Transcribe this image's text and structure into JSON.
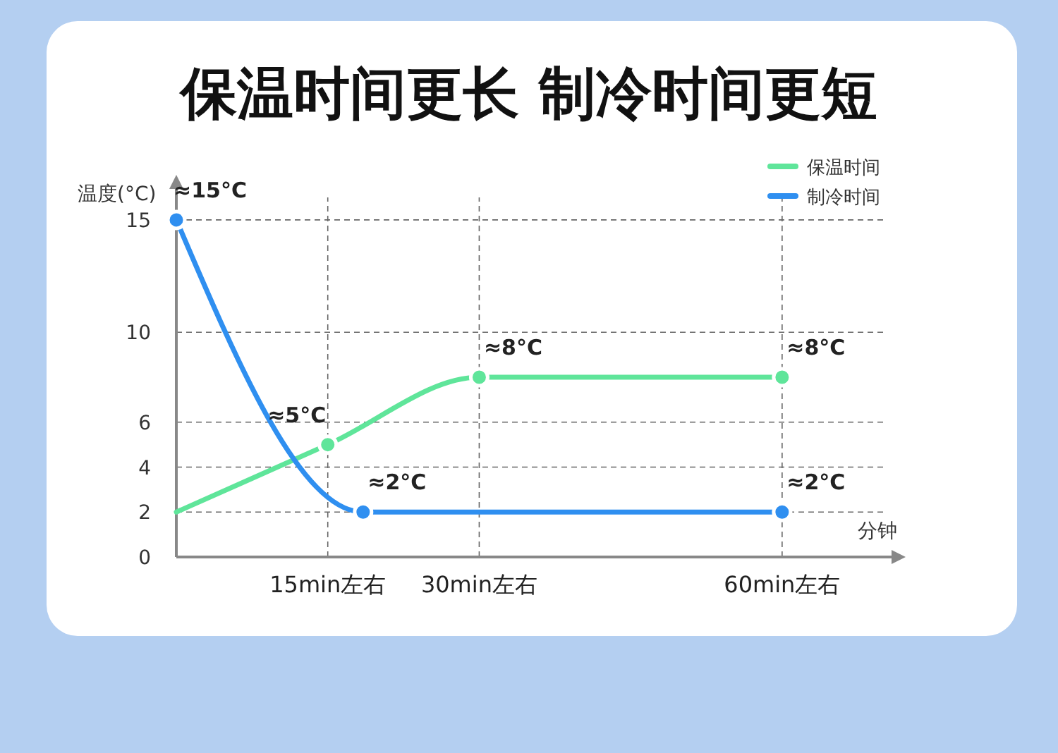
{
  "chart_data": {
    "type": "line",
    "title": "保温时间更长 制冷时间更短",
    "xlabel": "分钟",
    "ylabel": "温度(°C)",
    "xlim": [
      0,
      70
    ],
    "xticks": [
      {
        "value": 15,
        "label": "15min左右"
      },
      {
        "value": 30,
        "label": "30min左右"
      },
      {
        "value": 60,
        "label": "60min左右"
      }
    ],
    "ylim": [
      0,
      16
    ],
    "yticks": [
      0,
      2,
      4,
      6,
      10,
      15
    ],
    "series": [
      {
        "name": "保温时间",
        "color": "#5fe59a",
        "x": [
          0,
          15,
          30,
          60
        ],
        "values": [
          2,
          5,
          8,
          8
        ],
        "value_labels": [
          null,
          "≈5°C",
          "≈8°C",
          "≈8°C"
        ]
      },
      {
        "name": "制冷时间",
        "color": "#2f8ff0",
        "x": [
          0,
          18.5,
          60
        ],
        "values": [
          15,
          2,
          2
        ],
        "value_labels": [
          "≈15°C",
          "≈2°C",
          "≈2°C"
        ]
      }
    ],
    "grid": true,
    "line_style": "solid",
    "marker": "circle",
    "legend": "top right"
  }
}
